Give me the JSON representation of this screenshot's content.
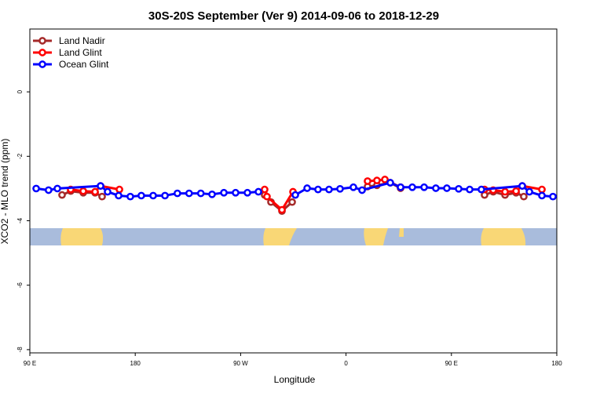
{
  "chart_data": {
    "type": "line",
    "title": "30S-20S September (Ver 9)   2014-09-06 to 2018-12-29",
    "xlabel": "Longitude",
    "ylabel": "XCO2 - MLO trend (ppm)",
    "xlim": [
      90,
      540
    ],
    "ylim": [
      -8.1,
      1.95
    ],
    "xticks": [
      {
        "value": 90,
        "label": "90 E"
      },
      180,
      {
        "value": 270,
        "label": "90 W"
      },
      {
        "value": 360,
        "label": "0"
      },
      {
        "value": 450,
        "label": "90 E"
      },
      {
        "value": 540,
        "label": "180"
      }
    ],
    "yticks": [
      -8,
      -6,
      -4,
      -2,
      0
    ],
    "legend": "upper-left",
    "series": [
      {
        "name": "Land Nadir",
        "color": "#a52a2a",
        "x": [
          117.5,
          124.9,
          135.6,
          145.7,
          151.7,
          null,
          290.5,
          295.9,
          305.3,
          314,
          null,
          378.4,
          386.4,
          397.8,
          406.6,
          null,
          478.3,
          485.7,
          495.8,
          505.2,
          511.8
        ],
        "values": [
          -3.2,
          -3.08,
          -3.13,
          -3.13,
          -3.25,
          null,
          -3.2,
          -3.42,
          -3.7,
          -3.42,
          null,
          -2.94,
          -2.9,
          -2.82,
          -2.99,
          null,
          -3.2,
          -3.1,
          -3.2,
          -3.13,
          -3.25
        ]
      },
      {
        "name": "Land Glint",
        "color": "#ff0000",
        "x": [
          124.9,
          135.6,
          145.7,
          150.4,
          166.5,
          null,
          290.5,
          292.5,
          305.3,
          314.7,
          null,
          378.4,
          386.4,
          393.2,
          406.6,
          null,
          478.3,
          485.7,
          495.8,
          505.2,
          510.5,
          527.3
        ],
        "values": [
          -3.03,
          -3.08,
          -3.1,
          -2.92,
          -3.03,
          null,
          -3.03,
          -3.25,
          -3.66,
          -3.1,
          null,
          -2.77,
          -2.75,
          -2.72,
          -2.96,
          null,
          -3.03,
          -3.05,
          -3.1,
          -3.08,
          -2.92,
          -3.03
        ]
      },
      {
        "name": "Ocean Glint",
        "color": "#0000ff",
        "x": [
          95.4,
          106,
          113.5,
          150.4,
          156.4,
          165.8,
          175.8,
          185.2,
          195.3,
          205.4,
          216,
          226,
          236,
          245.6,
          255.7,
          265.7,
          275.8,
          285.2,
          null,
          316.7,
          326.8,
          336.1,
          345.5,
          354.9,
          366.3,
          373.7,
          397.8,
          406.6,
          416.6,
          426.7,
          436.7,
          446.1,
          456.2,
          465.6,
          475.6,
          510.5,
          516.6,
          527.3,
          536.7
        ],
        "values": [
          -3.0,
          -3.05,
          -3.0,
          -2.92,
          -3.1,
          -3.22,
          -3.25,
          -3.22,
          -3.22,
          -3.22,
          -3.15,
          -3.15,
          -3.15,
          -3.18,
          -3.13,
          -3.13,
          -3.13,
          -3.1,
          null,
          -3.2,
          -2.99,
          -3.03,
          -3.03,
          -3.01,
          -2.96,
          -3.05,
          -2.82,
          -2.96,
          -2.96,
          -2.96,
          -2.99,
          -2.99,
          -3.01,
          -3.03,
          -3.03,
          -2.92,
          -3.1,
          -3.22,
          -3.25
        ]
      }
    ]
  }
}
